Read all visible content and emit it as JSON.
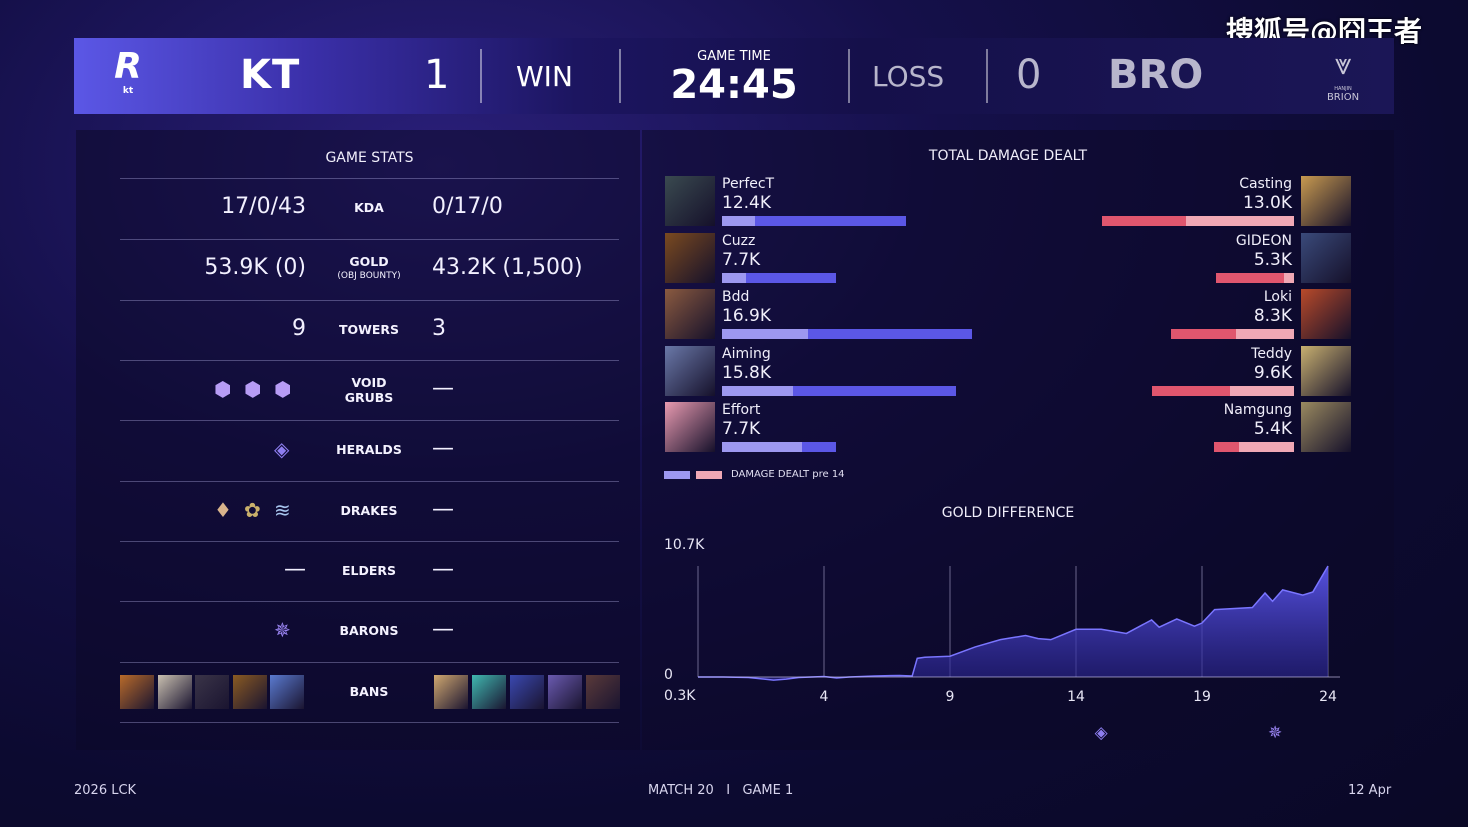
{
  "watermark": "搜狐号@囧王者",
  "header": {
    "blue": {
      "logo_text": "kt",
      "name": "KT",
      "score": "1",
      "result": "WIN"
    },
    "game_time_label": "GAME TIME",
    "game_time": "24:45",
    "red": {
      "result": "LOSS",
      "score": "0",
      "name": "BRO",
      "logo_top": "HANJIN",
      "logo_text": "BRION"
    }
  },
  "colors": {
    "blue": "#5b57e6",
    "blue_light": "#9d98f0",
    "red": "#e0566e",
    "red_light": "#f0a8b5",
    "accent": "#8a85f5"
  },
  "game_stats": {
    "title": "GAME STATS",
    "rows": [
      {
        "label": "KDA",
        "blue": "17/0/43",
        "red": "0/17/0"
      },
      {
        "label": "GOLD",
        "sublabel": "(OBJ BOUNTY)",
        "blue": "53.9K (0)",
        "red": "43.2K (1,500)"
      },
      {
        "label": "TOWERS",
        "blue": "9",
        "red": "3"
      },
      {
        "label": "VOID",
        "label2": "GRUBS",
        "blue_icons": [
          "voidgrub-icon",
          "voidgrub-icon",
          "voidgrub-icon"
        ],
        "red": "—"
      },
      {
        "label": "HERALDS",
        "blue_icons": [
          "herald-icon"
        ],
        "red": "—"
      },
      {
        "label": "DRAKES",
        "blue_icons": [
          "mountain-drake-icon",
          "hextech-drake-icon",
          "cloud-drake-icon"
        ],
        "red": "—"
      },
      {
        "label": "ELDERS",
        "blue": "—",
        "red": "—"
      },
      {
        "label": "BARONS",
        "blue_icons": [
          "baron-icon"
        ],
        "red": "—"
      },
      {
        "label": "BANS",
        "blue_bans": 5,
        "red_bans": 5
      }
    ]
  },
  "damage": {
    "title": "TOTAL DAMAGE DEALT",
    "legend": "DAMAGE DEALT pre 14",
    "blue": [
      {
        "name": "PerfecT",
        "value": "12.4K",
        "total": 12.4,
        "pre14": 2.2
      },
      {
        "name": "Cuzz",
        "value": "7.7K",
        "total": 7.7,
        "pre14": 1.6
      },
      {
        "name": "Bdd",
        "value": "16.9K",
        "total": 16.9,
        "pre14": 5.8
      },
      {
        "name": "Aiming",
        "value": "15.8K",
        "total": 15.8,
        "pre14": 4.8
      },
      {
        "name": "Effort",
        "value": "7.7K",
        "total": 7.7,
        "pre14": 5.4
      }
    ],
    "red": [
      {
        "name": "Casting",
        "value": "13.0K",
        "total": 13.0,
        "pre14": 7.3
      },
      {
        "name": "GIDEON",
        "value": "5.3K",
        "total": 5.3,
        "pre14": 0.7
      },
      {
        "name": "Loki",
        "value": "8.3K",
        "total": 8.3,
        "pre14": 3.9
      },
      {
        "name": "Teddy",
        "value": "9.6K",
        "total": 9.6,
        "pre14": 4.3
      },
      {
        "name": "Namgung",
        "value": "5.4K",
        "total": 5.4,
        "pre14": 3.7
      }
    ]
  },
  "chart_data": {
    "type": "area",
    "title": "GOLD DIFFERENCE",
    "y_max_label": "10.7K",
    "y_zero_label": "0",
    "y_min_label": "0.3K",
    "ylim": [
      -0.3,
      10.7
    ],
    "xlim": [
      -1,
      24
    ],
    "x_ticks": [
      "4",
      "9",
      "14",
      "19",
      "24"
    ],
    "grid": true,
    "x": [
      -1,
      0,
      1,
      2,
      2.5,
      3,
      4,
      4.5,
      5,
      6,
      7,
      7.5,
      7.7,
      8,
      9,
      10,
      11,
      12,
      12.5,
      13,
      14,
      15,
      16,
      17,
      17.3,
      18,
      18.7,
      19,
      19.5,
      21,
      21.5,
      21.8,
      22.2,
      23,
      23.4,
      24
    ],
    "y": [
      0,
      0,
      -0.05,
      -0.3,
      -0.2,
      -0.05,
      0.05,
      -0.1,
      0,
      0.1,
      0.15,
      0.1,
      1.8,
      1.9,
      2.0,
      2.9,
      3.6,
      4.0,
      3.7,
      3.6,
      4.6,
      4.6,
      4.2,
      5.5,
      4.8,
      5.6,
      4.9,
      5.2,
      6.5,
      6.7,
      8.1,
      7.3,
      8.4,
      7.9,
      8.2,
      10.7
    ],
    "events": [
      {
        "minute": 15,
        "icon": "herald-icon"
      },
      {
        "minute": 21.9,
        "icon": "baron-icon"
      }
    ]
  },
  "footer": {
    "left": "2026 LCK",
    "match": "MATCH 20",
    "sep": "I",
    "game": "GAME 1",
    "date": "12 Apr"
  }
}
